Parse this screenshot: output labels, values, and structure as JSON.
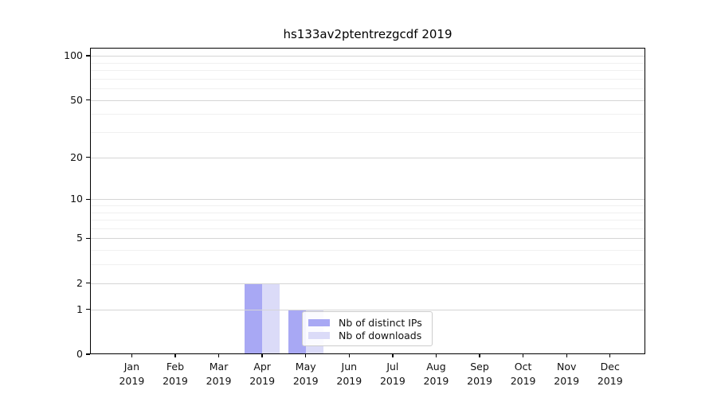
{
  "chart_data": {
    "type": "bar",
    "title": "hs133av2ptentrezgcdf 2019",
    "categories": [
      "Jan",
      "Feb",
      "Mar",
      "Apr",
      "May",
      "Jun",
      "Jul",
      "Aug",
      "Sep",
      "Oct",
      "Nov",
      "Dec"
    ],
    "x_year": "2019",
    "series": [
      {
        "name": "Nb of distinct IPs",
        "color": "#a8a8f4",
        "values": [
          0,
          0,
          0,
          2,
          1,
          0,
          0,
          0,
          0,
          0,
          0,
          0
        ]
      },
      {
        "name": "Nb of downloads",
        "color": "#dbdbf8",
        "values": [
          0,
          0,
          0,
          2,
          1,
          0,
          0,
          0,
          0,
          0,
          0,
          0
        ]
      }
    ],
    "y_scale": "log1p",
    "y_ticks": [
      0,
      1,
      2,
      5,
      10,
      20,
      50,
      100
    ],
    "y_minor_ticks": [
      3,
      4,
      6,
      7,
      8,
      9,
      30,
      40,
      60,
      70,
      80,
      90
    ],
    "ylim": [
      0,
      113
    ],
    "xlabel": "",
    "ylabel": "",
    "grid": "horizontal",
    "legend_position": "lower-center"
  },
  "colors": {
    "grid_major": "#d5d5d5",
    "grid_minor": "#f0f0f0",
    "axis": "#000000",
    "text": "#111111",
    "legend_border": "#cccccc"
  }
}
